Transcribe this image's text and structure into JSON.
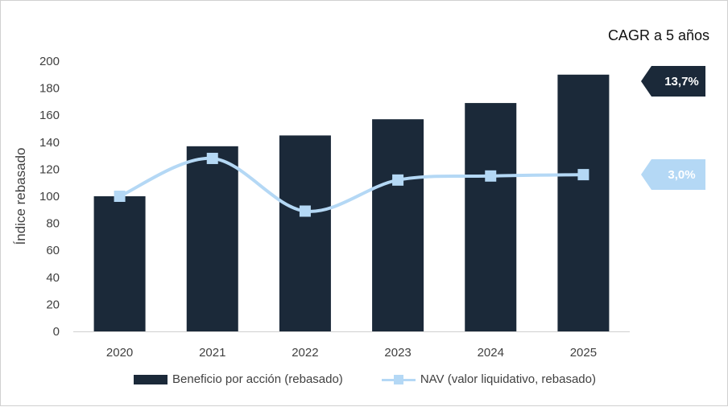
{
  "chart_data": {
    "type": "bar",
    "categories": [
      "2020",
      "2021",
      "2022",
      "2023",
      "2024",
      "2025"
    ],
    "series": [
      {
        "name": "Beneficio por acción (rebasado)",
        "kind": "bar",
        "color": "#1b2939",
        "values": [
          100,
          137,
          145,
          157,
          169,
          190
        ]
      },
      {
        "name": "NAV (valor liquidativo, rebasado)",
        "kind": "line",
        "color": "#b4d8f5",
        "values": [
          100,
          128,
          89,
          112,
          115,
          116
        ]
      }
    ],
    "ylabel": "Índice rebasado",
    "xlabel": "",
    "ylim": [
      0,
      200
    ],
    "yticks": [
      0,
      20,
      40,
      60,
      80,
      100,
      120,
      140,
      160,
      180,
      200
    ],
    "legend_position": "bottom",
    "annotation_title": "CAGR a 5 años",
    "annotations": [
      {
        "label": "13,7%",
        "series": 0,
        "bg": "#1b2939",
        "fg": "#ffffff"
      },
      {
        "label": "3,0%",
        "series": 1,
        "bg": "#b4d8f5",
        "fg": "#ffffff"
      }
    ]
  }
}
